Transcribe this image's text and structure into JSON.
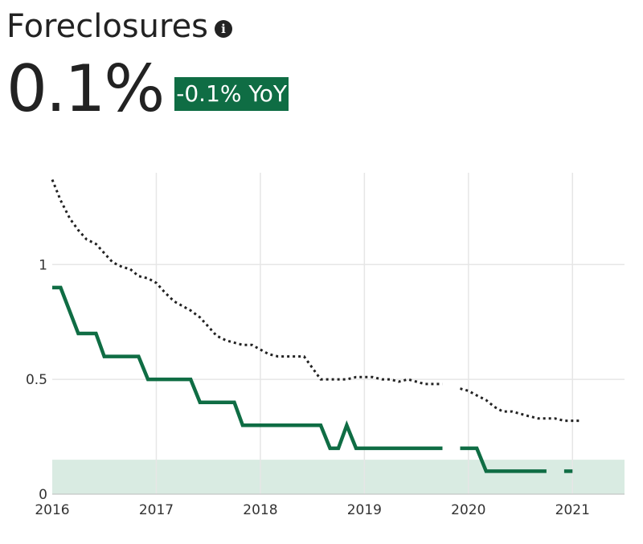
{
  "header": {
    "title": "Foreclosures",
    "info_icon": "info-icon",
    "value": "0.1%",
    "yoy": "-0.1% YoY"
  },
  "colors": {
    "primary_line": "#0f6d44",
    "comparison_line": "#222222",
    "band": "#d9ebe2",
    "badge": "#0f6d44",
    "grid": "#e6e6e6"
  },
  "chart_data": {
    "type": "line",
    "title": "Foreclosures",
    "xlabel": "",
    "ylabel": "",
    "xlim": [
      2016.0,
      2021.5
    ],
    "ylim": [
      0,
      1.4
    ],
    "x_ticks": [
      2016,
      2017,
      2018,
      2019,
      2020,
      2021
    ],
    "x_tick_labels": [
      "2016",
      "2017",
      "2018",
      "2019",
      "2020",
      "2021"
    ],
    "y_ticks": [
      0,
      0.5,
      1
    ],
    "y_tick_labels": [
      "0",
      "0.5",
      "1"
    ],
    "grid": true,
    "band": {
      "y_range": [
        0,
        0.15
      ]
    },
    "series": [
      {
        "style": "solid",
        "segments": [
          [
            [
              2016.0,
              0.9
            ],
            [
              2016.08,
              0.9
            ],
            [
              2016.25,
              0.7
            ],
            [
              2016.42,
              0.7
            ],
            [
              2016.5,
              0.6
            ],
            [
              2016.83,
              0.6
            ],
            [
              2016.92,
              0.5
            ],
            [
              2017.33,
              0.5
            ],
            [
              2017.42,
              0.4
            ],
            [
              2017.75,
              0.4
            ],
            [
              2017.83,
              0.3
            ],
            [
              2018.58,
              0.3
            ],
            [
              2018.67,
              0.2
            ],
            [
              2018.75,
              0.2
            ],
            [
              2018.83,
              0.3
            ],
            [
              2018.92,
              0.2
            ],
            [
              2019.75,
              0.2
            ]
          ],
          [
            [
              2019.92,
              0.2
            ],
            [
              2020.08,
              0.2
            ],
            [
              2020.17,
              0.1
            ],
            [
              2020.75,
              0.1
            ]
          ],
          [
            [
              2020.92,
              0.1
            ],
            [
              2021.0,
              0.1
            ]
          ]
        ]
      },
      {
        "style": "dotted",
        "segments": [
          [
            [
              2016.0,
              1.37
            ],
            [
              2016.08,
              1.28
            ],
            [
              2016.17,
              1.2
            ],
            [
              2016.25,
              1.15
            ],
            [
              2016.33,
              1.11
            ],
            [
              2016.42,
              1.09
            ],
            [
              2016.5,
              1.05
            ],
            [
              2016.58,
              1.01
            ],
            [
              2016.67,
              0.99
            ],
            [
              2016.75,
              0.98
            ],
            [
              2016.83,
              0.95
            ],
            [
              2016.92,
              0.94
            ],
            [
              2017.0,
              0.92
            ],
            [
              2017.08,
              0.88
            ],
            [
              2017.17,
              0.84
            ],
            [
              2017.25,
              0.82
            ],
            [
              2017.33,
              0.8
            ],
            [
              2017.42,
              0.77
            ],
            [
              2017.5,
              0.73
            ],
            [
              2017.58,
              0.69
            ],
            [
              2017.67,
              0.67
            ],
            [
              2017.75,
              0.66
            ],
            [
              2017.83,
              0.65
            ],
            [
              2017.92,
              0.65
            ],
            [
              2018.0,
              0.63
            ],
            [
              2018.08,
              0.61
            ],
            [
              2018.17,
              0.6
            ],
            [
              2018.25,
              0.6
            ],
            [
              2018.33,
              0.6
            ],
            [
              2018.42,
              0.6
            ],
            [
              2018.58,
              0.5
            ],
            [
              2018.67,
              0.5
            ],
            [
              2018.75,
              0.5
            ],
            [
              2018.83,
              0.5
            ],
            [
              2018.92,
              0.51
            ],
            [
              2019.0,
              0.51
            ],
            [
              2019.08,
              0.51
            ],
            [
              2019.17,
              0.5
            ],
            [
              2019.25,
              0.5
            ],
            [
              2019.33,
              0.49
            ],
            [
              2019.42,
              0.5
            ],
            [
              2019.5,
              0.49
            ],
            [
              2019.58,
              0.48
            ],
            [
              2019.67,
              0.48
            ],
            [
              2019.75,
              0.48
            ]
          ],
          [
            [
              2019.92,
              0.46
            ],
            [
              2020.0,
              0.45
            ],
            [
              2020.08,
              0.43
            ],
            [
              2020.17,
              0.41
            ],
            [
              2020.25,
              0.38
            ],
            [
              2020.33,
              0.36
            ],
            [
              2020.42,
              0.36
            ],
            [
              2020.5,
              0.35
            ],
            [
              2020.58,
              0.34
            ],
            [
              2020.67,
              0.33
            ],
            [
              2020.75,
              0.33
            ],
            [
              2020.83,
              0.33
            ],
            [
              2020.92,
              0.32
            ],
            [
              2021.0,
              0.32
            ],
            [
              2021.08,
              0.32
            ]
          ]
        ]
      }
    ]
  }
}
